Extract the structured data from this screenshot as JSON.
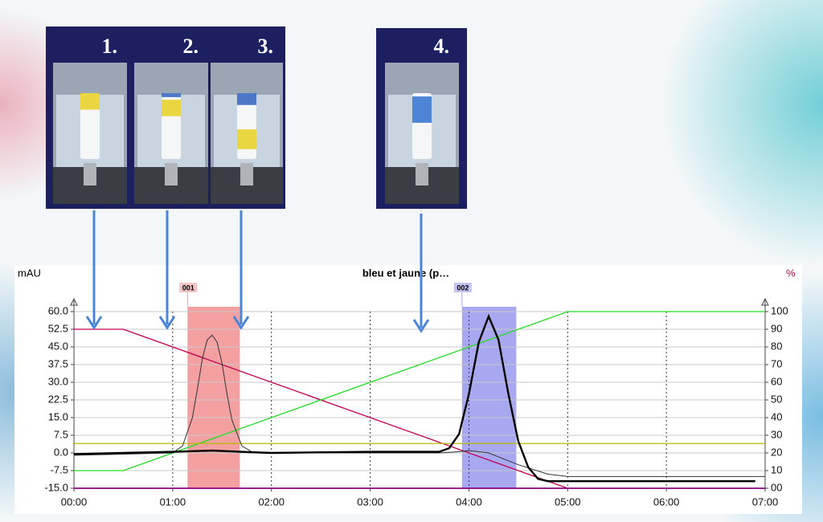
{
  "chart_data": {
    "type": "line",
    "title": "bleu et jaune (p…",
    "ylabel": "mAU",
    "y2label": "%",
    "xlim": [
      0,
      7
    ],
    "xticks": [
      {
        "value": 0,
        "label": "00:00"
      },
      {
        "value": 1,
        "label": "01:00"
      },
      {
        "value": 2,
        "label": "02:00"
      },
      {
        "value": 3,
        "label": "03:00"
      },
      {
        "value": 4,
        "label": "04:00"
      },
      {
        "value": 5,
        "label": "05:00"
      },
      {
        "value": 6,
        "label": "06:00"
      },
      {
        "value": 7,
        "label": "07:00"
      }
    ],
    "ylim": [
      -15,
      60
    ],
    "yticks": [
      {
        "value": 60,
        "label": "60.0"
      },
      {
        "value": 52.5,
        "label": "52.5"
      },
      {
        "value": 45,
        "label": "45.0"
      },
      {
        "value": 37.5,
        "label": "37.5"
      },
      {
        "value": 30,
        "label": "30.0"
      },
      {
        "value": 22.5,
        "label": "22.5"
      },
      {
        "value": 15,
        "label": "15.0"
      },
      {
        "value": 7.5,
        "label": "7.5"
      },
      {
        "value": 0,
        "label": "0.0"
      },
      {
        "value": -7.5,
        "label": "-7.5"
      },
      {
        "value": -15,
        "label": "-15.0"
      }
    ],
    "y2lim": [
      0,
      100
    ],
    "y2ticks": [
      {
        "value": 0,
        "label": "00"
      },
      10,
      20,
      30,
      40,
      50,
      60,
      70,
      80,
      90,
      100
    ],
    "y2color": "#c8004c",
    "grid": true,
    "fractions": [
      {
        "label": "001",
        "start": 1.15,
        "end": 1.68,
        "color": "#f4a0a0",
        "tag_color": "#f2c4c4"
      },
      {
        "label": "002",
        "start": 3.93,
        "end": 4.48,
        "color": "#a8a8f0",
        "tag_color": "#c4c4f0"
      }
    ],
    "series": [
      {
        "color": "#c00050",
        "width": 1.3,
        "axis": "y2",
        "x": [
          0,
          0.5,
          5.0
        ],
        "values": [
          90,
          90,
          0
        ]
      },
      {
        "color": "#22dd22",
        "width": 1.3,
        "axis": "y2",
        "x": [
          0,
          0.5,
          5.0,
          7.0
        ],
        "values": [
          10,
          10,
          100,
          100
        ]
      },
      {
        "color": "#b8b800",
        "width": 1.3,
        "x": [
          0,
          7
        ],
        "values": [
          4,
          4
        ]
      },
      {
        "color": "#8b008b",
        "width": 1.8,
        "x": [
          0,
          7
        ],
        "values": [
          -15,
          -15
        ]
      },
      {
        "color": "#333333",
        "width": 1,
        "x": [
          0,
          0.5,
          1.0,
          1.1,
          1.2,
          1.25,
          1.3,
          1.35,
          1.4,
          1.45,
          1.5,
          1.55,
          1.6,
          1.7,
          1.8,
          2.0,
          3.0,
          3.7,
          3.9,
          4.0,
          4.2,
          4.5,
          4.8,
          5.0,
          6.0,
          7.0
        ],
        "values": [
          -1,
          -0.5,
          0,
          3,
          15,
          27,
          40,
          48,
          50,
          47,
          38,
          25,
          14,
          3,
          0.5,
          0,
          0,
          0,
          0.5,
          1,
          0,
          -5,
          -9,
          -10,
          -10,
          -10
        ]
      },
      {
        "color": "#000000",
        "width": 2.4,
        "x": [
          0,
          0.5,
          1.0,
          1.4,
          1.8,
          2.0,
          3.0,
          3.7,
          3.8,
          3.9,
          4.0,
          4.1,
          4.2,
          4.3,
          4.4,
          4.5,
          4.6,
          4.7,
          4.8,
          5.0,
          6.0,
          6.9
        ],
        "values": [
          -0.5,
          0,
          0.5,
          1,
          0.3,
          0,
          0.5,
          0.5,
          2,
          8,
          25,
          47,
          58,
          48,
          25,
          5,
          -6,
          -11,
          -12,
          -12,
          -12,
          -12
        ]
      }
    ]
  },
  "photos": [
    {
      "label": "1."
    },
    {
      "label": "2."
    },
    {
      "label": "3."
    },
    {
      "label": "4."
    }
  ]
}
